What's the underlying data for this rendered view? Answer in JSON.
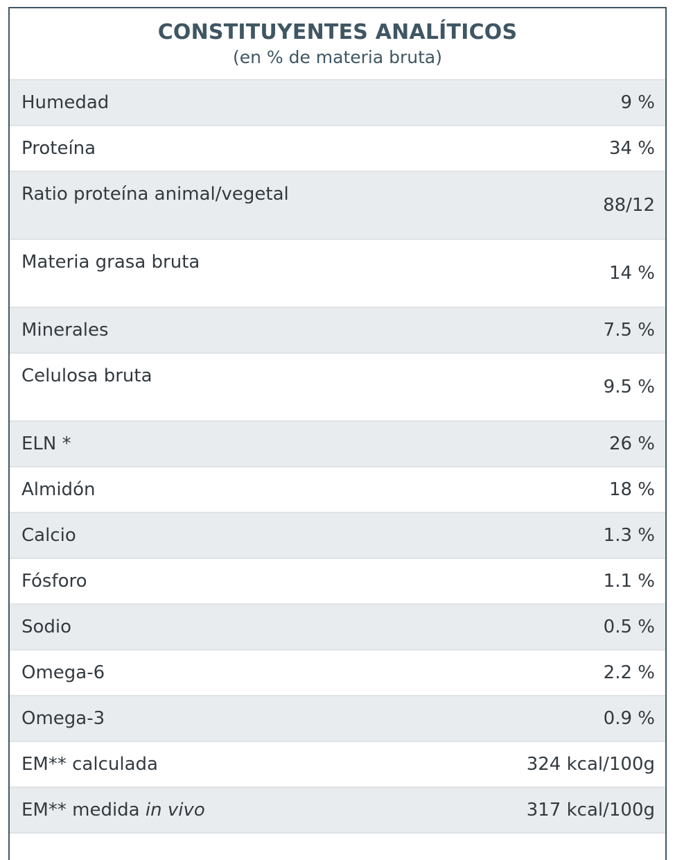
{
  "header": {
    "title": "CONSTITUYENTES ANALÍTICOS",
    "subtitle": "(en % de materia bruta)"
  },
  "rows": [
    {
      "label": "Humedad",
      "value": "9 %"
    },
    {
      "label": "Proteína",
      "value": "34 %"
    },
    {
      "label": "Ratio proteína animal/vegetal",
      "value": "88/12"
    },
    {
      "label": "Materia grasa bruta",
      "value": "14 %"
    },
    {
      "label": "Minerales",
      "value": "7.5 %"
    },
    {
      "label": "Celulosa bruta",
      "value": "9.5 %"
    },
    {
      "label": "ELN *",
      "value": "26 %"
    },
    {
      "label": "Almidón",
      "value": "18 %"
    },
    {
      "label": "Calcio",
      "value": "1.3 %"
    },
    {
      "label": "Fósforo",
      "value": "1.1 %"
    },
    {
      "label": "Sodio",
      "value": "0.5 %"
    },
    {
      "label": "Omega-6",
      "value": "2.2 %"
    },
    {
      "label": "Omega-3",
      "value": "0.9 %"
    },
    {
      "label": "EM** calculada",
      "value": "324 kcal/100g"
    },
    {
      "label": "EM** medida ",
      "label_italic": "in vivo",
      "value": "317 kcal/100g"
    }
  ],
  "colors": {
    "header_text": "#3f5663",
    "border": "#3f5663",
    "row_shade": "#e9ecee",
    "row_divider": "#dfe3e6",
    "body_text": "#333a3f"
  }
}
